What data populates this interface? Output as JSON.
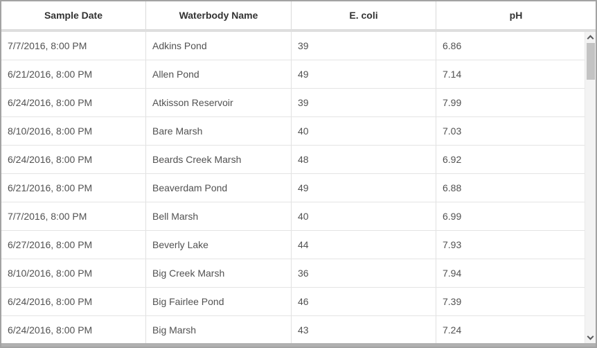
{
  "header": {
    "columns": [
      "Sample Date",
      "Waterbody Name",
      "E. coli",
      "pH"
    ]
  },
  "rows": [
    {
      "date": "7/7/2016, 8:00 PM",
      "name": "Adkins Pond",
      "ecoli": "39",
      "ph": "6.86"
    },
    {
      "date": "6/21/2016, 8:00 PM",
      "name": "Allen Pond",
      "ecoli": "49",
      "ph": "7.14"
    },
    {
      "date": "6/24/2016, 8:00 PM",
      "name": "Atkisson Reservoir",
      "ecoli": "39",
      "ph": "7.99"
    },
    {
      "date": "8/10/2016, 8:00 PM",
      "name": "Bare Marsh",
      "ecoli": "40",
      "ph": "7.03"
    },
    {
      "date": "6/24/2016, 8:00 PM",
      "name": "Beards Creek Marsh",
      "ecoli": "48",
      "ph": "6.92"
    },
    {
      "date": "6/21/2016, 8:00 PM",
      "name": "Beaverdam Pond",
      "ecoli": "49",
      "ph": "6.88"
    },
    {
      "date": "7/7/2016, 8:00 PM",
      "name": "Bell Marsh",
      "ecoli": "40",
      "ph": "6.99"
    },
    {
      "date": "6/27/2016, 8:00 PM",
      "name": "Beverly Lake",
      "ecoli": "44",
      "ph": "7.93"
    },
    {
      "date": "8/10/2016, 8:00 PM",
      "name": "Big Creek Marsh",
      "ecoli": "36",
      "ph": "7.94"
    },
    {
      "date": "6/24/2016, 8:00 PM",
      "name": "Big Fairlee Pond",
      "ecoli": "46",
      "ph": "7.39"
    },
    {
      "date": "6/24/2016, 8:00 PM",
      "name": "Big Marsh",
      "ecoli": "43",
      "ph": "7.24"
    }
  ],
  "icons": {
    "scroll_up": "chevron-up-icon",
    "scroll_down": "chevron-down-icon"
  },
  "colors": {
    "header_text": "#323232",
    "body_text": "#515151",
    "grid_line": "#e0e0e0",
    "header_band": "#dedede",
    "scroll_track": "#f3f3f3",
    "scroll_thumb": "#c3c3c3",
    "bottom_bar": "#b0b0b0",
    "outer_border": "#a3a3a3"
  }
}
